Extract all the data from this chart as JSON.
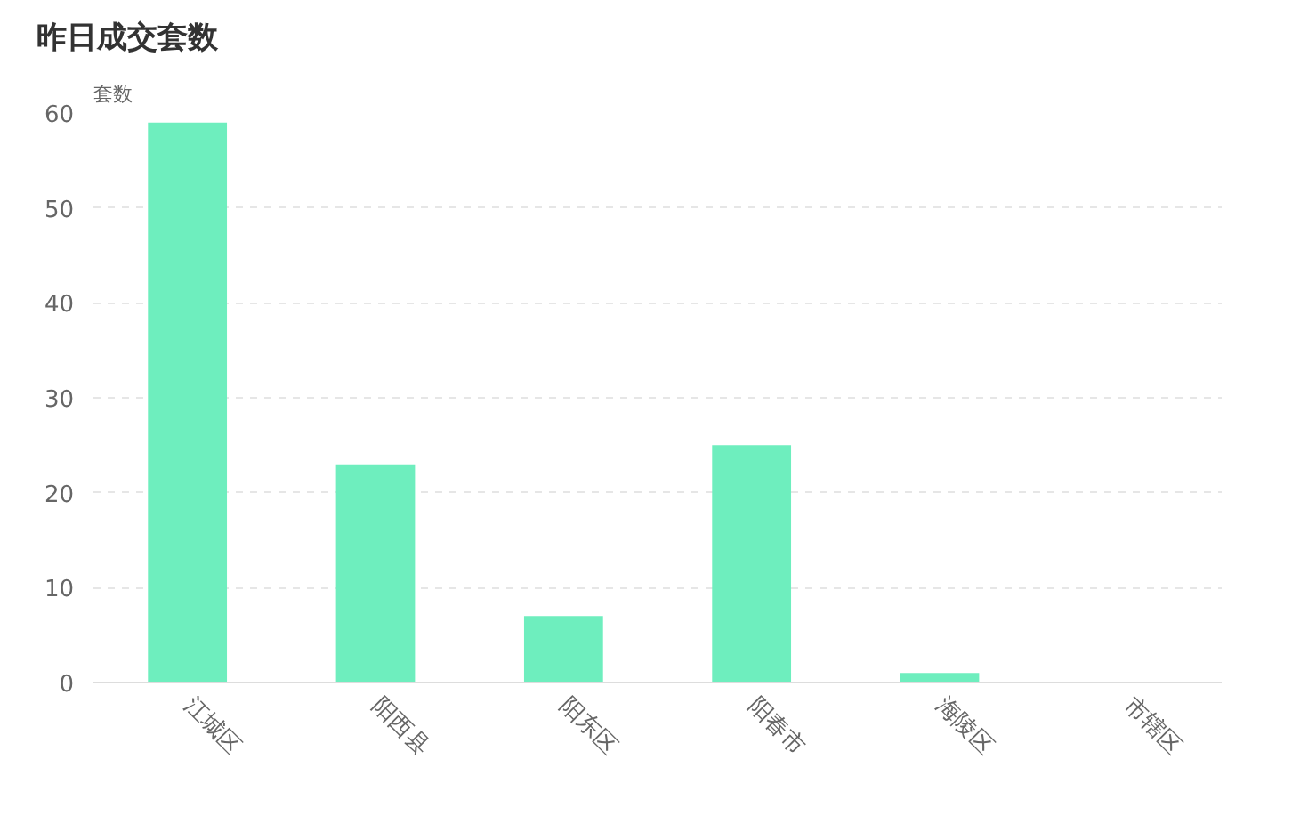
{
  "chart_data": {
    "type": "bar",
    "title": "昨日成交套数",
    "ylabel": "套数",
    "categories": [
      "江城区",
      "阳西县",
      "阳东区",
      "阳春市",
      "海陵区",
      "市辖区"
    ],
    "values": [
      59,
      23,
      7,
      25,
      1,
      0
    ],
    "color": "#6eeebe",
    "ylim": [
      0,
      60
    ],
    "yticks": [
      0,
      10,
      20,
      30,
      40,
      50,
      60
    ],
    "grid": "y"
  }
}
